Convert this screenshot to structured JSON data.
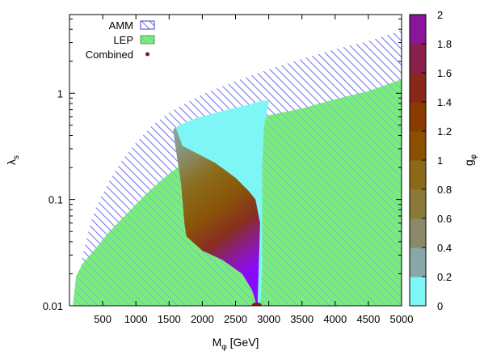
{
  "chart_data": {
    "type": "area",
    "x": {
      "label": "M",
      "label_sub": "φ",
      "label_suffix": " [GeV]",
      "range": [
        0,
        5000
      ],
      "ticks": [
        "500",
        "1000",
        "1500",
        "2000",
        "2500",
        "3000",
        "3500",
        "4000",
        "4500",
        "5000"
      ],
      "tick_values": [
        500,
        1000,
        1500,
        2000,
        2500,
        3000,
        3500,
        4000,
        4500,
        5000
      ]
    },
    "y": {
      "label": "λ",
      "label_sub": "s",
      "scale": "log",
      "range": [
        0.01,
        5.5
      ],
      "ticks": [
        "0.01",
        "0.1",
        "1"
      ],
      "tick_values": [
        0.01,
        0.1,
        1
      ]
    },
    "legend": {
      "position": "top-left",
      "entries": [
        {
          "label": "AMM",
          "style": "hatched",
          "color": "#3f3fd8"
        },
        {
          "label": "LEP",
          "style": "solid-hatched",
          "color": "#72ea72"
        },
        {
          "label": "Combined",
          "style": "point",
          "color": "#7f1f1f"
        }
      ]
    },
    "series": [
      {
        "name": "AMM",
        "fill": "hatch",
        "color": "#4646d6",
        "lower_boundary": [
          [
            0,
            0.01
          ],
          [
            5000,
            0.01
          ]
        ],
        "upper_boundary": [
          [
            100,
            0.0115
          ],
          [
            200,
            0.03
          ],
          [
            300,
            0.055
          ],
          [
            400,
            0.085
          ],
          [
            600,
            0.15
          ],
          [
            800,
            0.24
          ],
          [
            1000,
            0.34
          ],
          [
            1250,
            0.5
          ],
          [
            1500,
            0.66
          ],
          [
            2000,
            0.98
          ],
          [
            2500,
            1.3
          ],
          [
            3000,
            1.68
          ],
          [
            3500,
            2.1
          ],
          [
            4000,
            2.6
          ],
          [
            4500,
            3.1
          ],
          [
            5000,
            3.9
          ]
        ]
      },
      {
        "name": "LEP",
        "fill": "solid-hatch",
        "color": "#72ea72",
        "upper_boundary": [
          [
            50,
            0.0102
          ],
          [
            100,
            0.019
          ],
          [
            200,
            0.025
          ],
          [
            400,
            0.035
          ],
          [
            600,
            0.05
          ],
          [
            800,
            0.067
          ],
          [
            1000,
            0.09
          ],
          [
            1200,
            0.12
          ],
          [
            1400,
            0.155
          ],
          [
            1500,
            0.175
          ],
          [
            1700,
            0.215
          ],
          [
            2000,
            0.29
          ],
          [
            2500,
            0.45
          ],
          [
            3000,
            0.62
          ],
          [
            3500,
            0.72
          ],
          [
            4000,
            0.88
          ],
          [
            4500,
            1.05
          ],
          [
            5000,
            1.35
          ]
        ]
      },
      {
        "name": "Combined",
        "fill": "colormap",
        "boundary_left": [
          [
            1560,
            0.45
          ],
          [
            1600,
            0.3
          ],
          [
            1680,
            0.14
          ],
          [
            1730,
            0.06
          ],
          [
            1760,
            0.045
          ],
          [
            2000,
            0.033
          ],
          [
            2300,
            0.027
          ],
          [
            2600,
            0.02
          ],
          [
            2750,
            0.014
          ],
          [
            2800,
            0.011
          ],
          [
            2830,
            0.0095
          ]
        ],
        "boundary_right": [
          [
            2820,
            0.0095
          ],
          [
            2880,
            0.011
          ],
          [
            2900,
            0.02
          ],
          [
            2900,
            0.06
          ],
          [
            2900,
            0.2
          ],
          [
            2930,
            0.5
          ],
          [
            2990,
            0.75
          ],
          [
            3000,
            0.85
          ]
        ],
        "top_edge": [
          [
            1560,
            0.45
          ],
          [
            1650,
            0.5
          ],
          [
            1900,
            0.58
          ],
          [
            2300,
            0.68
          ],
          [
            2700,
            0.78
          ],
          [
            2900,
            0.85
          ],
          [
            3000,
            0.85
          ]
        ],
        "white_gap_boundary": [
          [
            1600,
            0.48
          ],
          [
            1700,
            0.32
          ],
          [
            2200,
            0.22
          ],
          [
            2500,
            0.16
          ],
          [
            2700,
            0.12
          ],
          [
            2800,
            0.1
          ],
          [
            2870,
            0.06
          ]
        ]
      }
    ],
    "colorbar": {
      "label": "g",
      "label_sub": "φ",
      "range": [
        0,
        2
      ],
      "ticks": [
        "0",
        "0.2",
        "0.4",
        "0.6",
        "0.8",
        "1",
        "1.2",
        "1.4",
        "1.6",
        "1.8",
        "2"
      ],
      "tick_values": [
        0,
        0.2,
        0.4,
        0.6,
        0.8,
        1.0,
        1.2,
        1.4,
        1.6,
        1.8,
        2.0
      ],
      "colors": [
        "#7ff6f6",
        "#88a7a7",
        "#8a8a6a",
        "#8a7a3a",
        "#8a6a18",
        "#8a5000",
        "#8a3c00",
        "#88281a",
        "#88204a",
        "#8a149a",
        "#8a00ff"
      ]
    },
    "grid": false
  }
}
